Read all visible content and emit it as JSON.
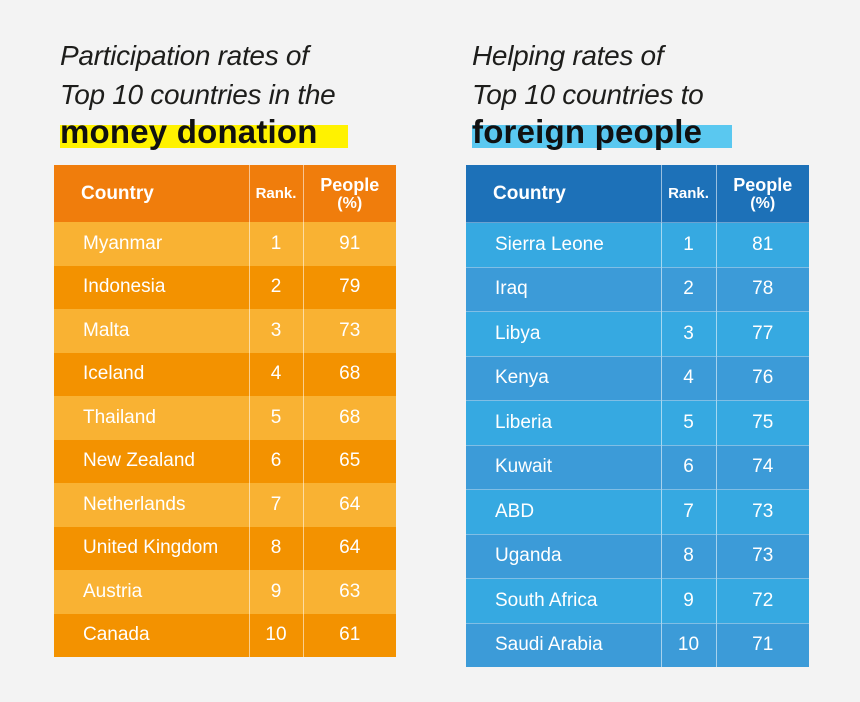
{
  "chart_data": [
    {
      "type": "table",
      "title_lines": [
        "Participation rates of",
        "Top 10 countries in the"
      ],
      "title_highlight": "money donation",
      "highlight_color": "#fff200",
      "columns": [
        "Country",
        "Rank.",
        "People",
        "(%)"
      ],
      "rows": [
        {
          "country": "Myanmar",
          "rank": "1",
          "people": "91"
        },
        {
          "country": "Indonesia",
          "rank": "2",
          "people": "79"
        },
        {
          "country": "Malta",
          "rank": "3",
          "people": "73"
        },
        {
          "country": "Iceland",
          "rank": "4",
          "people": "68"
        },
        {
          "country": "Thailand",
          "rank": "5",
          "people": "68"
        },
        {
          "country": "New Zealand",
          "rank": "6",
          "people": "65"
        },
        {
          "country": "Netherlands",
          "rank": "7",
          "people": "64"
        },
        {
          "country": "United Kingdom",
          "rank": "8",
          "people": "64"
        },
        {
          "country": "Austria",
          "rank": "9",
          "people": "63"
        },
        {
          "country": "Canada",
          "rank": "10",
          "people": "61"
        }
      ]
    },
    {
      "type": "table",
      "title_lines": [
        "Helping rates of",
        "Top 10 countries to"
      ],
      "title_highlight": "foreign people",
      "highlight_color": "#5ac8f0",
      "columns": [
        "Country",
        "Rank.",
        "People",
        "(%)"
      ],
      "rows": [
        {
          "country": "Sierra Leone",
          "rank": "1",
          "people": "81"
        },
        {
          "country": "Iraq",
          "rank": "2",
          "people": "78"
        },
        {
          "country": "Libya",
          "rank": "3",
          "people": "77"
        },
        {
          "country": "Kenya",
          "rank": "4",
          "people": "76"
        },
        {
          "country": "Liberia",
          "rank": "5",
          "people": "75"
        },
        {
          "country": "Kuwait",
          "rank": "6",
          "people": "74"
        },
        {
          "country": "ABD",
          "rank": "7",
          "people": "73"
        },
        {
          "country": "Uganda",
          "rank": "8",
          "people": "73"
        },
        {
          "country": "South Africa",
          "rank": "9",
          "people": "72"
        },
        {
          "country": "Saudi Arabia",
          "rank": "10",
          "people": "71"
        }
      ]
    }
  ]
}
